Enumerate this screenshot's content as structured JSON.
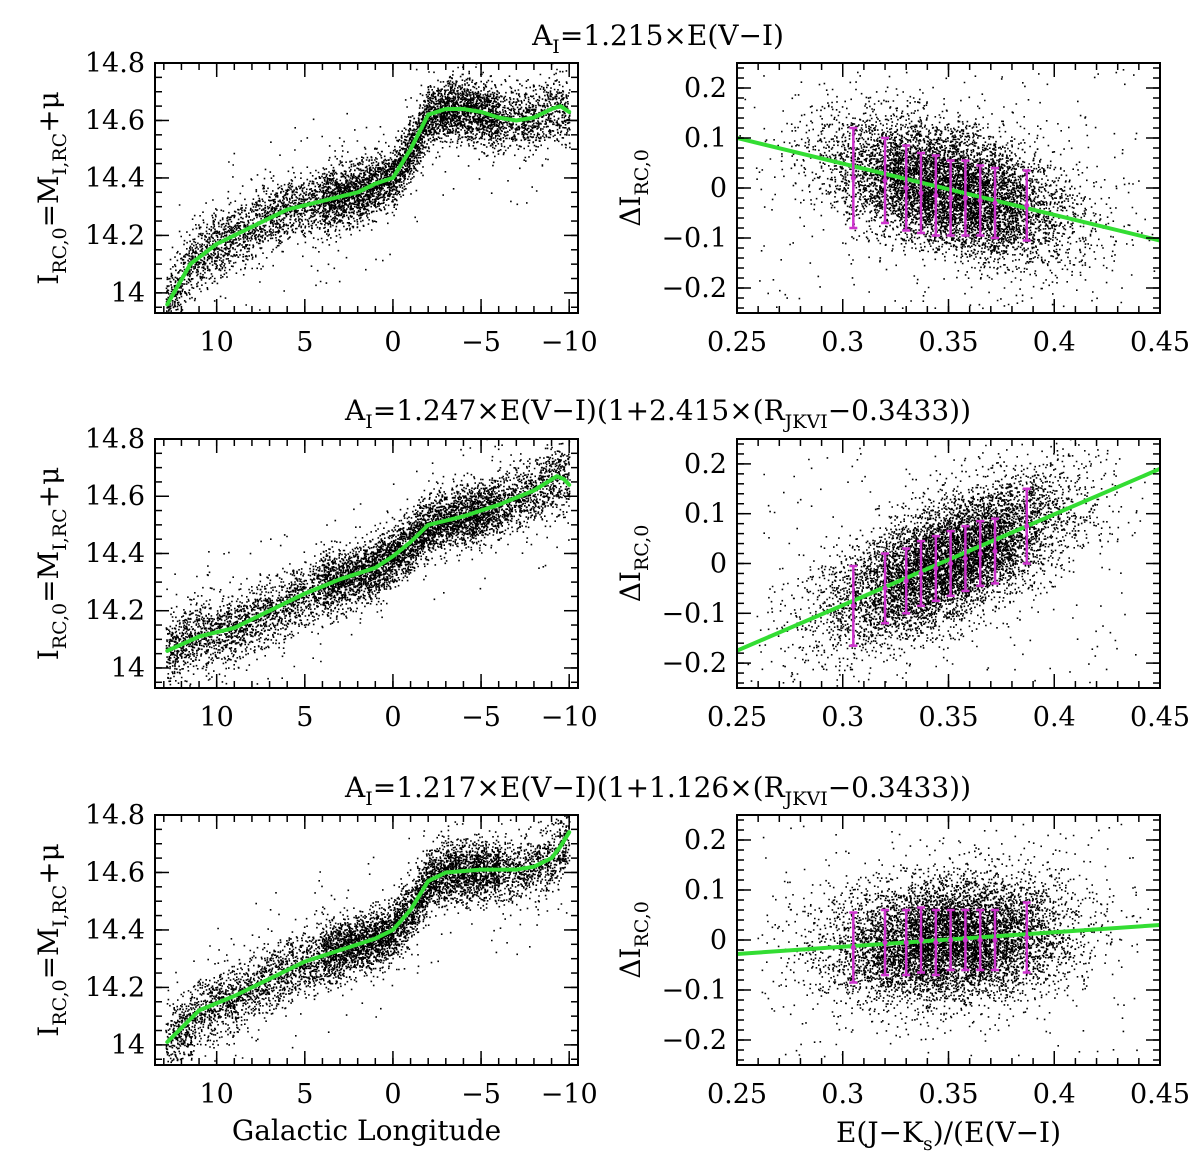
{
  "chart_data": [
    {
      "type": "scatter",
      "panel": "row1-left",
      "xlabel": "",
      "ylabel": "I_{RC,0}=M_{I,RC}+μ",
      "ylabel_parts": {
        "main": "I",
        "sub": "RC,0",
        "eq": "=M",
        "sub2": "I,RC",
        "tail": "+μ"
      },
      "xlim": [
        13.5,
        -10.5
      ],
      "ylim": [
        13.93,
        14.8
      ],
      "xticks": [
        "10",
        "5",
        "0",
        "−5",
        "−10"
      ],
      "yticks": [
        "14",
        "14.2",
        "14.4",
        "14.6",
        "14.8"
      ],
      "series": [
        {
          "color": "#33dd33",
          "x": [
            12.8,
            11.5,
            10,
            8,
            6,
            4,
            2,
            1,
            0,
            -1,
            -2,
            -3,
            -4,
            -5,
            -6,
            -7,
            -8,
            -9,
            -9.5,
            -10
          ],
          "y": [
            13.96,
            14.1,
            14.17,
            14.23,
            14.29,
            14.32,
            14.35,
            14.38,
            14.4,
            14.5,
            14.62,
            14.64,
            14.64,
            14.63,
            14.61,
            14.6,
            14.61,
            14.64,
            14.65,
            14.63
          ]
        }
      ]
    },
    {
      "type": "scatter",
      "panel": "row1-right",
      "title": "A_I=1.215×E(V−I)",
      "title_parts": {
        "pre": "A",
        "sub": "I",
        "post": "=1.215×E(V−I)"
      },
      "xlabel": "",
      "ylabel": "ΔI_{RC,0}",
      "ylabel_parts": {
        "main": "ΔI",
        "sub": "RC,0"
      },
      "xlim": [
        0.25,
        0.45
      ],
      "ylim": [
        -0.25,
        0.25
      ],
      "xticks": [
        "0.25",
        "0.3",
        "0.35",
        "0.4",
        "0.45"
      ],
      "yticks": [
        "−0.2",
        "−0.1",
        "0",
        "0.1",
        "0.2"
      ],
      "fit_line": {
        "color": "#33dd33",
        "x": [
          0.25,
          0.45
        ],
        "y": [
          0.1,
          -0.105
        ]
      },
      "error_bars": {
        "color": "#cc33cc",
        "x": [
          0.305,
          0.32,
          0.33,
          0.337,
          0.344,
          0.351,
          0.358,
          0.365,
          0.372,
          0.387
        ],
        "y": [
          0.02,
          0.015,
          0.0,
          -0.01,
          -0.015,
          -0.02,
          -0.02,
          -0.025,
          -0.03,
          -0.035
        ],
        "err": [
          0.1,
          0.085,
          0.085,
          0.08,
          0.08,
          0.075,
          0.075,
          0.07,
          0.07,
          0.07
        ]
      }
    },
    {
      "type": "scatter",
      "panel": "row2-left",
      "xlabel": "",
      "ylabel": "I_{RC,0}=M_{I,RC}+μ",
      "ylabel_parts": {
        "main": "I",
        "sub": "RC,0",
        "eq": "=M",
        "sub2": "I,RC",
        "tail": "+μ"
      },
      "xlim": [
        13.5,
        -10.5
      ],
      "ylim": [
        13.93,
        14.8
      ],
      "xticks": [
        "10",
        "5",
        "0",
        "−5",
        "−10"
      ],
      "yticks": [
        "14",
        "14.2",
        "14.4",
        "14.6",
        "14.8"
      ],
      "series": [
        {
          "color": "#33dd33",
          "x": [
            12.8,
            11,
            9,
            7,
            5,
            3,
            1,
            0,
            -1,
            -2,
            -4,
            -6,
            -8,
            -9.3,
            -9.7,
            -10
          ],
          "y": [
            14.06,
            14.11,
            14.14,
            14.2,
            14.26,
            14.31,
            14.35,
            14.39,
            14.44,
            14.5,
            14.53,
            14.57,
            14.62,
            14.67,
            14.66,
            14.64
          ]
        }
      ]
    },
    {
      "type": "scatter",
      "panel": "row2-right",
      "title": "A_I=1.247×E(V−I)(1+2.415×(R_JKVI−0.3433))",
      "title_parts": {
        "pre": "A",
        "sub": "I",
        "mid": "=1.247×E(V−I)(1+2.415×(R",
        "sub2": "JKVI",
        "post": "−0.3433))"
      },
      "xlabel": "",
      "ylabel": "ΔI_{RC,0}",
      "ylabel_parts": {
        "main": "ΔI",
        "sub": "RC,0"
      },
      "xlim": [
        0.25,
        0.45
      ],
      "ylim": [
        -0.25,
        0.25
      ],
      "xticks": [
        "0.25",
        "0.3",
        "0.35",
        "0.4",
        "0.45"
      ],
      "yticks": [
        "−0.2",
        "−0.1",
        "0",
        "0.1",
        "0.2"
      ],
      "fit_line": {
        "color": "#33dd33",
        "x": [
          0.25,
          0.45
        ],
        "y": [
          -0.175,
          0.19
        ]
      },
      "error_bars": {
        "color": "#cc33cc",
        "x": [
          0.305,
          0.32,
          0.33,
          0.337,
          0.344,
          0.351,
          0.358,
          0.365,
          0.372,
          0.387
        ],
        "y": [
          -0.085,
          -0.05,
          -0.035,
          -0.02,
          -0.01,
          0.0,
          0.01,
          0.02,
          0.025,
          0.075
        ],
        "err": [
          0.08,
          0.07,
          0.065,
          0.065,
          0.065,
          0.065,
          0.065,
          0.065,
          0.065,
          0.075
        ]
      }
    },
    {
      "type": "scatter",
      "panel": "row3-left",
      "xlabel": "Galactic Longitude",
      "ylabel": "I_{RC,0}=M_{I,RC}+μ",
      "ylabel_parts": {
        "main": "I",
        "sub": "RC,0",
        "eq": "=M",
        "sub2": "I,RC",
        "tail": "+μ"
      },
      "xlim": [
        13.5,
        -10.5
      ],
      "ylim": [
        13.93,
        14.8
      ],
      "xticks": [
        "10",
        "5",
        "0",
        "−5",
        "−10"
      ],
      "yticks": [
        "14",
        "14.2",
        "14.4",
        "14.6",
        "14.8"
      ],
      "series": [
        {
          "color": "#33dd33",
          "x": [
            12.8,
            11,
            9,
            7,
            5,
            3,
            1,
            0,
            -1,
            -2,
            -3,
            -5,
            -7,
            -8,
            -9,
            -9.5,
            -10
          ],
          "y": [
            14.01,
            14.12,
            14.17,
            14.23,
            14.29,
            14.33,
            14.37,
            14.4,
            14.47,
            14.57,
            14.6,
            14.61,
            14.61,
            14.62,
            14.65,
            14.69,
            14.74
          ]
        }
      ]
    },
    {
      "type": "scatter",
      "panel": "row3-right",
      "title": "A_I=1.217×E(V−I)(1+1.126×(R_JKVI−0.3433))",
      "title_parts": {
        "pre": "A",
        "sub": "I",
        "mid": "=1.217×E(V−I)(1+1.126×(R",
        "sub2": "JKVI",
        "post": "−0.3433))"
      },
      "xlabel": "E(J−K_s)/(E(V−I)",
      "xlabel_parts": {
        "pre": "E(J−K",
        "sub": "s",
        "post": ")/(E(V−I)"
      },
      "ylabel": "ΔI_{RC,0}",
      "ylabel_parts": {
        "main": "ΔI",
        "sub": "RC,0"
      },
      "xlim": [
        0.25,
        0.45
      ],
      "ylim": [
        -0.25,
        0.25
      ],
      "xticks": [
        "0.25",
        "0.3",
        "0.35",
        "0.4",
        "0.45"
      ],
      "yticks": [
        "−0.2",
        "−0.1",
        "0",
        "0.1",
        "0.2"
      ],
      "fit_line": {
        "color": "#33dd33",
        "x": [
          0.25,
          0.45
        ],
        "y": [
          -0.028,
          0.03
        ]
      },
      "error_bars": {
        "color": "#cc33cc",
        "x": [
          0.305,
          0.32,
          0.33,
          0.337,
          0.344,
          0.351,
          0.358,
          0.365,
          0.372,
          0.387
        ],
        "y": [
          -0.015,
          -0.005,
          -0.005,
          0.0,
          -0.005,
          0.0,
          0.0,
          0.0,
          0.0,
          0.005
        ],
        "err": [
          0.07,
          0.065,
          0.065,
          0.065,
          0.065,
          0.06,
          0.06,
          0.06,
          0.06,
          0.07
        ]
      }
    }
  ]
}
